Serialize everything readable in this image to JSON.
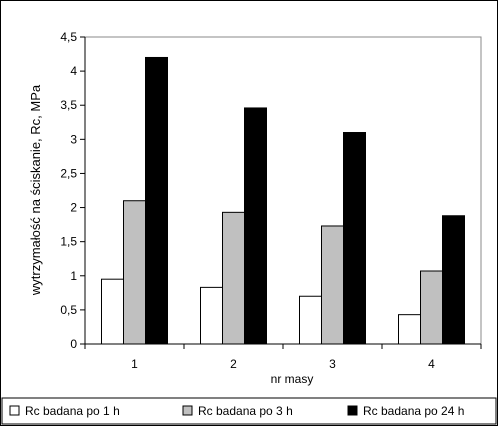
{
  "chart_data": {
    "type": "bar",
    "title": "",
    "xlabel": "nr masy",
    "ylabel": "wytrzymałość na ściskanie, Rc, MPa",
    "categories": [
      "1",
      "2",
      "3",
      "4"
    ],
    "ylim": [
      0,
      4.5
    ],
    "yticks": [
      "0",
      "0,5",
      "1",
      "1,5",
      "2",
      "2,5",
      "3",
      "3,5",
      "4",
      "4,5"
    ],
    "grid": false,
    "legend_position": "bottom",
    "series": [
      {
        "name": "Rc badana po 1 h",
        "color": "#ffffff",
        "values": [
          0.95,
          0.83,
          0.7,
          0.43
        ]
      },
      {
        "name": "Rc badana po 3 h",
        "color": "#c0c0c0",
        "values": [
          2.1,
          1.93,
          1.73,
          1.07
        ]
      },
      {
        "name": "Rc badana po 24 h",
        "color": "#000000",
        "values": [
          4.2,
          3.46,
          3.1,
          1.88
        ]
      }
    ]
  }
}
